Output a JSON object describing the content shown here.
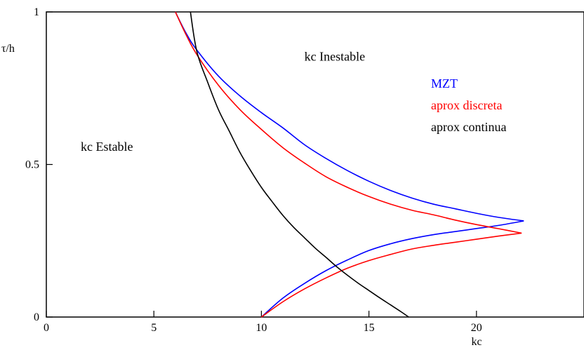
{
  "chart_data": {
    "type": "line",
    "xlabel": "kc",
    "ylabel": "τ/h",
    "xlim": [
      0,
      25
    ],
    "ylim": [
      0,
      1
    ],
    "x_ticks": [
      {
        "value": 0,
        "label": "0"
      },
      {
        "value": 5,
        "label": "5"
      },
      {
        "value": 10,
        "label": "10"
      },
      {
        "value": 15,
        "label": "15"
      },
      {
        "value": 20,
        "label": "20"
      }
    ],
    "y_ticks": [
      {
        "value": 0,
        "label": "0"
      },
      {
        "value": 0.5,
        "label": "0.5"
      },
      {
        "value": 1,
        "label": "1"
      }
    ],
    "grid": false,
    "legend_position": "top-right",
    "series": [
      {
        "name": "MZT",
        "color": "#0000ff",
        "points": [
          [
            6.0,
            1.0
          ],
          [
            6.5,
            0.93
          ],
          [
            7.0,
            0.875
          ],
          [
            8.0,
            0.79
          ],
          [
            9.0,
            0.725
          ],
          [
            10.0,
            0.67
          ],
          [
            11.0,
            0.62
          ],
          [
            12.0,
            0.565
          ],
          [
            13.0,
            0.52
          ],
          [
            14.0,
            0.48
          ],
          [
            15.0,
            0.445
          ],
          [
            16.0,
            0.415
          ],
          [
            17.0,
            0.39
          ],
          [
            18.0,
            0.37
          ],
          [
            19.0,
            0.355
          ],
          [
            20.0,
            0.34
          ],
          [
            21.0,
            0.327
          ],
          [
            22.2,
            0.315
          ],
          [
            21.0,
            0.3
          ],
          [
            20.0,
            0.29
          ],
          [
            19.0,
            0.28
          ],
          [
            18.0,
            0.27
          ],
          [
            17.0,
            0.257
          ],
          [
            16.0,
            0.24
          ],
          [
            15.0,
            0.218
          ],
          [
            14.0,
            0.187
          ],
          [
            13.0,
            0.152
          ],
          [
            12.0,
            0.11
          ],
          [
            11.0,
            0.062
          ],
          [
            10.0,
            0.0
          ]
        ]
      },
      {
        "name": "aprox discreta",
        "color": "#ff0000",
        "points": [
          [
            6.0,
            1.0
          ],
          [
            6.5,
            0.925
          ],
          [
            7.0,
            0.86
          ],
          [
            8.0,
            0.76
          ],
          [
            9.0,
            0.68
          ],
          [
            10.0,
            0.615
          ],
          [
            11.0,
            0.555
          ],
          [
            12.0,
            0.505
          ],
          [
            13.0,
            0.46
          ],
          [
            14.0,
            0.425
          ],
          [
            15.0,
            0.395
          ],
          [
            16.0,
            0.37
          ],
          [
            17.0,
            0.35
          ],
          [
            18.0,
            0.335
          ],
          [
            19.0,
            0.318
          ],
          [
            20.0,
            0.303
          ],
          [
            21.0,
            0.29
          ],
          [
            22.1,
            0.275
          ],
          [
            21.0,
            0.265
          ],
          [
            20.0,
            0.255
          ],
          [
            19.0,
            0.245
          ],
          [
            18.0,
            0.235
          ],
          [
            17.0,
            0.223
          ],
          [
            16.0,
            0.205
          ],
          [
            15.0,
            0.185
          ],
          [
            14.0,
            0.16
          ],
          [
            13.0,
            0.128
          ],
          [
            12.0,
            0.092
          ],
          [
            11.0,
            0.05
          ],
          [
            10.0,
            0.0
          ]
        ]
      },
      {
        "name": "aprox continua",
        "color": "#000000",
        "points": [
          [
            6.7,
            1.0
          ],
          [
            7.0,
            0.87
          ],
          [
            7.5,
            0.77
          ],
          [
            8.0,
            0.68
          ],
          [
            8.5,
            0.61
          ],
          [
            9.0,
            0.54
          ],
          [
            9.5,
            0.48
          ],
          [
            10.0,
            0.425
          ],
          [
            10.5,
            0.378
          ],
          [
            11.0,
            0.333
          ],
          [
            11.5,
            0.294
          ],
          [
            12.0,
            0.26
          ],
          [
            12.5,
            0.226
          ],
          [
            13.0,
            0.196
          ],
          [
            13.5,
            0.165
          ],
          [
            14.0,
            0.137
          ],
          [
            14.5,
            0.111
          ],
          [
            15.0,
            0.087
          ],
          [
            15.5,
            0.063
          ],
          [
            16.0,
            0.04
          ],
          [
            16.5,
            0.017
          ],
          [
            16.85,
            0.0
          ]
        ]
      }
    ],
    "annotations": [
      {
        "text": "kc Inestable",
        "x": 12.0,
        "y": 0.84,
        "color": "#000000"
      },
      {
        "text": "kc Estable",
        "x": 1.6,
        "y": 0.545,
        "color": "#000000"
      }
    ],
    "legend": [
      {
        "text": "MZT",
        "color": "#0000ff"
      },
      {
        "text": "aprox discreta",
        "color": "#ff0000"
      },
      {
        "text": "aprox continua",
        "color": "#000000"
      }
    ]
  }
}
